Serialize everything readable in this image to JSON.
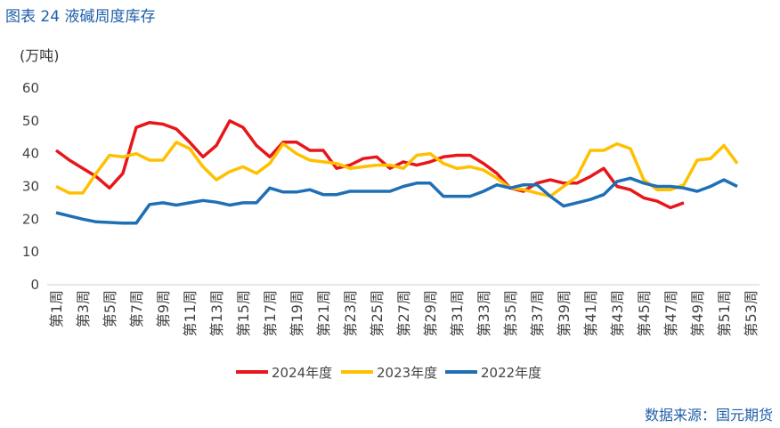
{
  "chart_data": {
    "type": "line",
    "title": "图表 24 液碱周度库存",
    "y_label": "(万吨)",
    "source": "数据来源：国元期货",
    "categories": [
      "第1周",
      null,
      "第3周",
      null,
      "第5周",
      null,
      "第7周",
      null,
      "第9周",
      null,
      "第11周",
      null,
      "第13周",
      null,
      "第15周",
      null,
      "第17周",
      null,
      "第19周",
      null,
      "第21周",
      null,
      "第23周",
      null,
      "第25周",
      null,
      "第27周",
      null,
      "第29周",
      null,
      "第31周",
      null,
      "第33周",
      null,
      "第35周",
      null,
      "第37周",
      null,
      "第39周",
      null,
      "第41周",
      null,
      "第43周",
      null,
      "第45周",
      null,
      "第47周",
      null,
      "第49周",
      null,
      "第51周",
      null,
      "第53周"
    ],
    "series": [
      {
        "name": "2024年度",
        "color": "#e8161a",
        "values": [
          41,
          38,
          35.5,
          33,
          29.5,
          34,
          48,
          49.5,
          49,
          47.5,
          43.5,
          39,
          42.5,
          50,
          48,
          42.5,
          39,
          43.5,
          43.5,
          41,
          41,
          35.5,
          36.5,
          38.5,
          39,
          35.5,
          37.5,
          36.5,
          37.5,
          39,
          39.5,
          39.5,
          37,
          34,
          29.5,
          28.5,
          31,
          32,
          31,
          31,
          33,
          35.5,
          30,
          29,
          26.5,
          25.5,
          23.5,
          25,
          null,
          null,
          null,
          null,
          null
        ]
      },
      {
        "name": "2023年度",
        "color": "#ffc000",
        "values": [
          30,
          28,
          28,
          34,
          39.5,
          39,
          40,
          38,
          38,
          43.5,
          41.5,
          36,
          32,
          34.5,
          36,
          34,
          37,
          43,
          40,
          38,
          37.5,
          37,
          35.5,
          36,
          36.5,
          36.5,
          35.5,
          39.5,
          40,
          37,
          35.5,
          36,
          35,
          32.5,
          29.5,
          29,
          28,
          27,
          30,
          33,
          41,
          41,
          43,
          41.5,
          32,
          29,
          29,
          30.5,
          38,
          38.5,
          42.5,
          37,
          null
        ]
      },
      {
        "name": "2022年度",
        "color": "#1f6fb5",
        "values": [
          22,
          21,
          20,
          19.2,
          19,
          18.8,
          18.8,
          24.5,
          25,
          24.3,
          25,
          25.7,
          25.2,
          24.3,
          25,
          25,
          29.5,
          28.3,
          28.3,
          29,
          27.5,
          27.5,
          28.5,
          28.5,
          28.5,
          28.5,
          30,
          31,
          31,
          27,
          27,
          27,
          28.5,
          30.5,
          29.5,
          30.5,
          30.5,
          27,
          24,
          25,
          26,
          27.5,
          31.5,
          32.5,
          31,
          30,
          30,
          29.5,
          28.5,
          30,
          32,
          30,
          null
        ]
      }
    ],
    "ylim": [
      0,
      60
    ],
    "yticks": [
      0,
      10,
      20,
      30,
      40,
      50,
      60
    ]
  }
}
